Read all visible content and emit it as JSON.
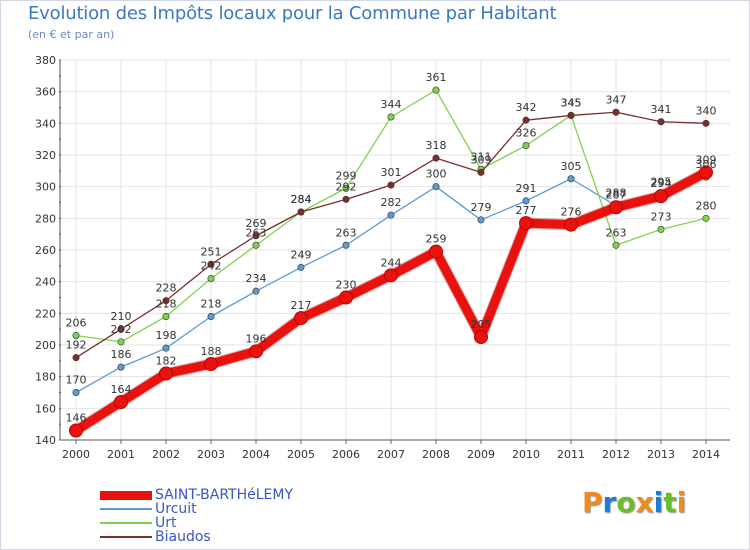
{
  "title": "Evolution des Impôts locaux pour la Commune par Habitant",
  "subtitle": "(en € et par an)",
  "logo": {
    "letters": [
      "P",
      "r",
      "o",
      "x",
      "i",
      "t",
      "i"
    ],
    "colors": [
      "#f08a1c",
      "#1c7dd6",
      "#6cbd2a",
      "#f08a1c",
      "#1c7dd6",
      "#6cbd2a",
      "#f08a1c"
    ]
  },
  "chart_data": {
    "type": "line",
    "title": "Evolution des Impôts locaux pour la Commune par Habitant",
    "subtitle": "(en € et par an)",
    "xlabel": "",
    "ylabel": "",
    "categories": [
      "2000",
      "2001",
      "2002",
      "2003",
      "2004",
      "2005",
      "2006",
      "2007",
      "2008",
      "2009",
      "2010",
      "2011",
      "2012",
      "2013",
      "2014"
    ],
    "ylim": [
      140,
      380
    ],
    "yticks": [
      140,
      160,
      180,
      200,
      220,
      240,
      260,
      280,
      300,
      320,
      340,
      360,
      380
    ],
    "grid": true,
    "legend_position": "bottom-left",
    "series": [
      {
        "name": "SAINT-BARTHéLEMY",
        "color": "#e8120f",
        "width": "thick",
        "values": [
          146,
          164,
          182,
          188,
          196,
          217,
          230,
          244,
          259,
          205,
          277,
          276,
          287,
          294,
          309
        ],
        "labels": [
          "146",
          "164",
          "182",
          "188",
          "196",
          "217",
          "230",
          "244",
          "259",
          "205",
          "277",
          "276",
          "287",
          "294",
          "309"
        ]
      },
      {
        "name": "Urcuit",
        "color": "#5b9bd5",
        "width": "thin",
        "values": [
          170,
          186,
          198,
          218,
          234,
          249,
          263,
          282,
          300,
          279,
          291,
          305,
          288,
          295,
          306
        ],
        "labels": [
          "170",
          "186",
          "198",
          "218",
          "234",
          "249",
          "263",
          "282",
          "300",
          "279",
          "291",
          "305",
          "288",
          "295",
          "306"
        ]
      },
      {
        "name": "Urt",
        "color": "#7fd34c",
        "width": "thin",
        "values": [
          206,
          202,
          218,
          242,
          263,
          284,
          299,
          344,
          361,
          311,
          326,
          345,
          263,
          273,
          280
        ],
        "labels": [
          "206",
          "202",
          "218",
          "242",
          "263",
          "284",
          "299",
          "344",
          "361",
          "311",
          "326",
          "345",
          "263",
          "273",
          "280"
        ]
      },
      {
        "name": "Biaudos",
        "color": "#7a2e2e",
        "width": "thin",
        "values": [
          192,
          210,
          228,
          251,
          269,
          284,
          292,
          301,
          318,
          309,
          342,
          345,
          347,
          341,
          340
        ],
        "labels": [
          "192",
          "210",
          "228",
          "251",
          "269",
          "284",
          "292",
          "301",
          "318",
          "309",
          "342",
          "345",
          "347",
          "341",
          "340"
        ]
      }
    ]
  }
}
